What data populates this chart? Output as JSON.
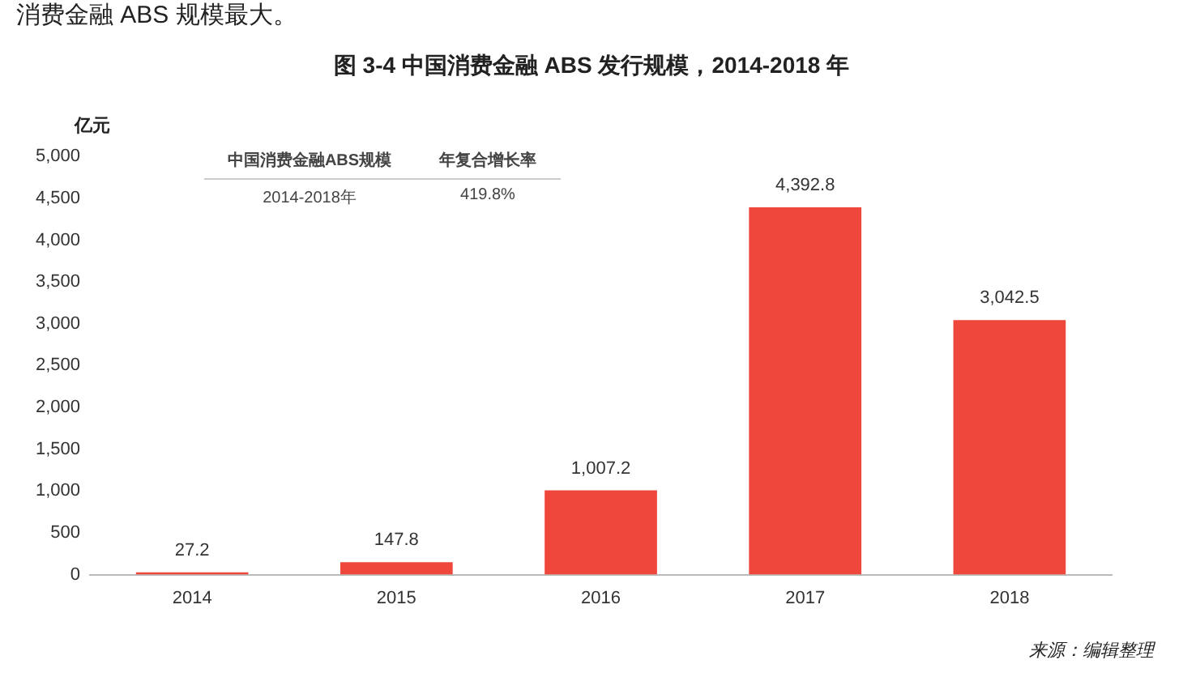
{
  "chart_data": {
    "type": "bar",
    "title": "图 3-4  中国消费金融 ABS 发行规模，2014-2018 年",
    "ylabel": "亿元",
    "categories": [
      "2014",
      "2015",
      "2016",
      "2017",
      "2018"
    ],
    "values": [
      27.2,
      147.8,
      1007.2,
      4392.8,
      3042.5
    ],
    "value_labels": [
      "27.2",
      "147.8",
      "1,007.2",
      "4,392.8",
      "3,042.5"
    ],
    "color": "#f0473d",
    "ylim": [
      0,
      5000
    ],
    "yticks": [
      {
        "value": 0,
        "label": "0"
      },
      {
        "value": 500,
        "label": "500"
      },
      {
        "value": 1000,
        "label": "1,000"
      },
      {
        "value": 1500,
        "label": "1,500"
      },
      {
        "value": 2000,
        "label": "2,000"
      },
      {
        "value": 2500,
        "label": "2,500"
      },
      {
        "value": 3000,
        "label": "3,000"
      },
      {
        "value": 3500,
        "label": "3,500"
      },
      {
        "value": 4000,
        "label": "4,000"
      },
      {
        "value": 4500,
        "label": "4,500"
      },
      {
        "value": 5000,
        "label": "5,000"
      }
    ],
    "grid": false,
    "legend": false,
    "annotations": [
      "消费金融 ABS 规模最大。",
      "中国消费金融ABS规模",
      "年复合增长率",
      "2014-2018年",
      "419.8%",
      "来源：编辑整理"
    ]
  }
}
